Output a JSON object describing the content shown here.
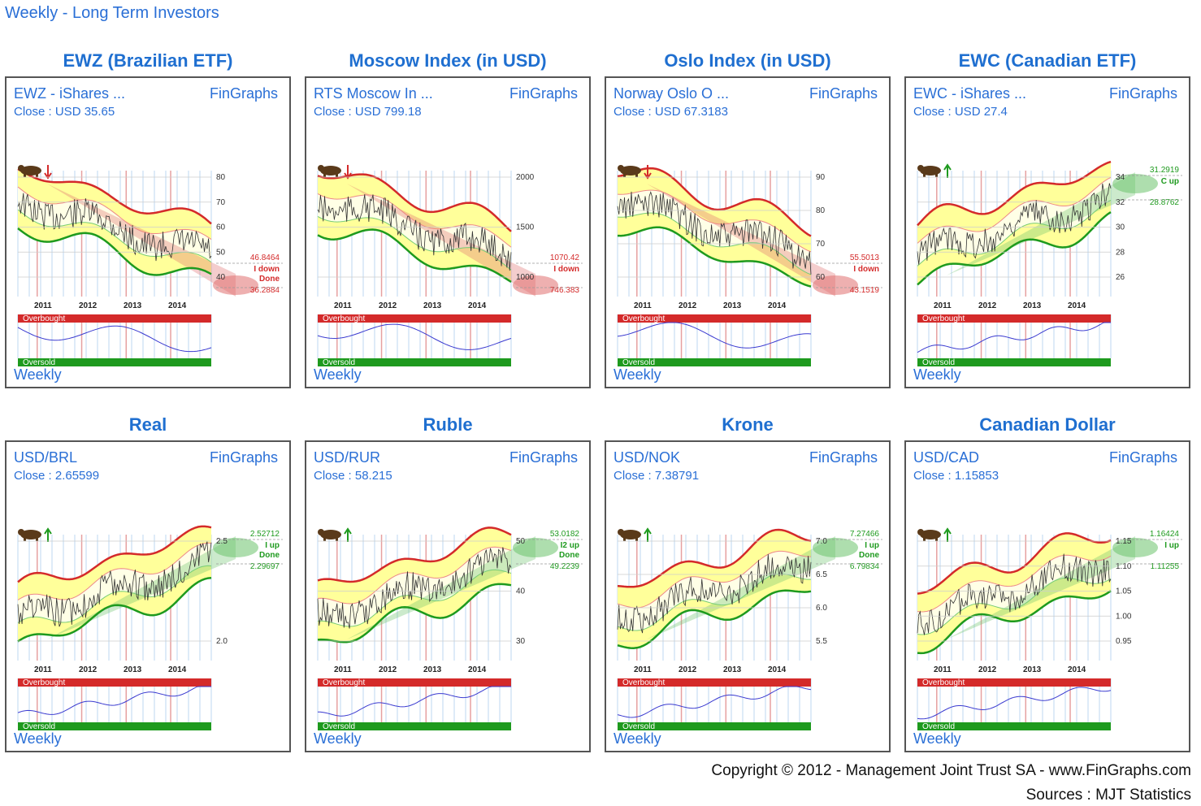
{
  "header": {
    "title": "Weekly - Long Term Investors"
  },
  "footer": {
    "copyright": "Copyright © 2012 - Management Joint Trust SA - www.FinGraphs.com",
    "sources": "Sources :  MJT Statistics"
  },
  "colors": {
    "accent": "#2a6fd6",
    "down": "#d42a2a",
    "up": "#1e9a1e",
    "band": "#ffff9a"
  },
  "years": [
    "2011",
    "2012",
    "2013",
    "2014"
  ],
  "osc": {
    "overbought": "Overbought",
    "oversold": "Oversold"
  },
  "panels": [
    {
      "heading": "EWZ (Brazilian ETF)",
      "name": "EWZ - iShares ...",
      "brand": "FinGraphs",
      "close": "Close : USD 35.65",
      "period": "Weekly",
      "signal_icon": "bear-icon",
      "trend": "down",
      "axis": [
        "80",
        "70",
        "60",
        "50",
        "40"
      ],
      "tag": {
        "top": "46.8464",
        "mid1": "I down",
        "mid2": "Done",
        "bot": "36.2884"
      }
    },
    {
      "heading": "Moscow Index (in USD)",
      "name": "RTS Moscow In ...",
      "brand": "FinGraphs",
      "close": "Close : USD 799.18",
      "period": "Weekly",
      "signal_icon": "bear-icon",
      "trend": "down",
      "axis": [
        "2000",
        "1500",
        "1000"
      ],
      "tag": {
        "top": "1070.42",
        "mid1": "I down",
        "mid2": "",
        "bot": "746.383"
      }
    },
    {
      "heading": "Oslo Index (in USD)",
      "name": "Norway Oslo O ...",
      "brand": "FinGraphs",
      "close": "Close : USD 67.3183",
      "period": "Weekly",
      "signal_icon": "bear-icon",
      "trend": "down",
      "axis": [
        "90",
        "80",
        "70",
        "60"
      ],
      "tag": {
        "top": "55.5013",
        "mid1": "I down",
        "mid2": "",
        "bot": "43.1519"
      }
    },
    {
      "heading": "EWC (Canadian ETF)",
      "name": "EWC - iShares ...",
      "brand": "FinGraphs",
      "close": "Close : USD 27.4",
      "period": "Weekly",
      "signal_icon": "bull-icon",
      "trend": "up",
      "axis": [
        "34",
        "32",
        "30",
        "28",
        "26"
      ],
      "tag": {
        "top": "31.2919",
        "mid1": "C up",
        "mid2": "",
        "bot": "28.8762"
      }
    },
    {
      "heading": "Real",
      "name": "USD/BRL",
      "brand": "FinGraphs",
      "close": "Close : 2.65599",
      "period": "Weekly",
      "signal_icon": "bull-icon",
      "trend": "up",
      "axis": [
        "2.5",
        "2.0"
      ],
      "tag": {
        "top": "2.52712",
        "mid1": "I up",
        "mid2": "Done",
        "bot": "2.29697"
      }
    },
    {
      "heading": "Ruble",
      "name": "USD/RUR",
      "brand": "FinGraphs",
      "close": "Close : 58.215",
      "period": "Weekly",
      "signal_icon": "bull-icon",
      "trend": "up",
      "axis": [
        "50",
        "40",
        "30"
      ],
      "tag": {
        "top": "53.0182",
        "mid1": "I2 up",
        "mid2": "Done",
        "bot": "49.2239"
      }
    },
    {
      "heading": "Krone",
      "name": "USD/NOK",
      "brand": "FinGraphs",
      "close": "Close : 7.38791",
      "period": "Weekly",
      "signal_icon": "bull-icon",
      "trend": "up",
      "axis": [
        "7.0",
        "6.5",
        "6.0",
        "5.5"
      ],
      "tag": {
        "top": "7.27466",
        "mid1": "I up",
        "mid2": "Done",
        "bot": "6.79834"
      }
    },
    {
      "heading": "Canadian Dollar",
      "name": "USD/CAD",
      "brand": "FinGraphs",
      "close": "Close : 1.15853",
      "period": "Weekly",
      "signal_icon": "bull-icon",
      "trend": "up",
      "axis": [
        "1.15",
        "1.10",
        "1.05",
        "1.00",
        "0.95"
      ],
      "tag": {
        "top": "1.16424",
        "mid1": "I up",
        "mid2": "",
        "bot": "1.11255"
      }
    }
  ]
}
